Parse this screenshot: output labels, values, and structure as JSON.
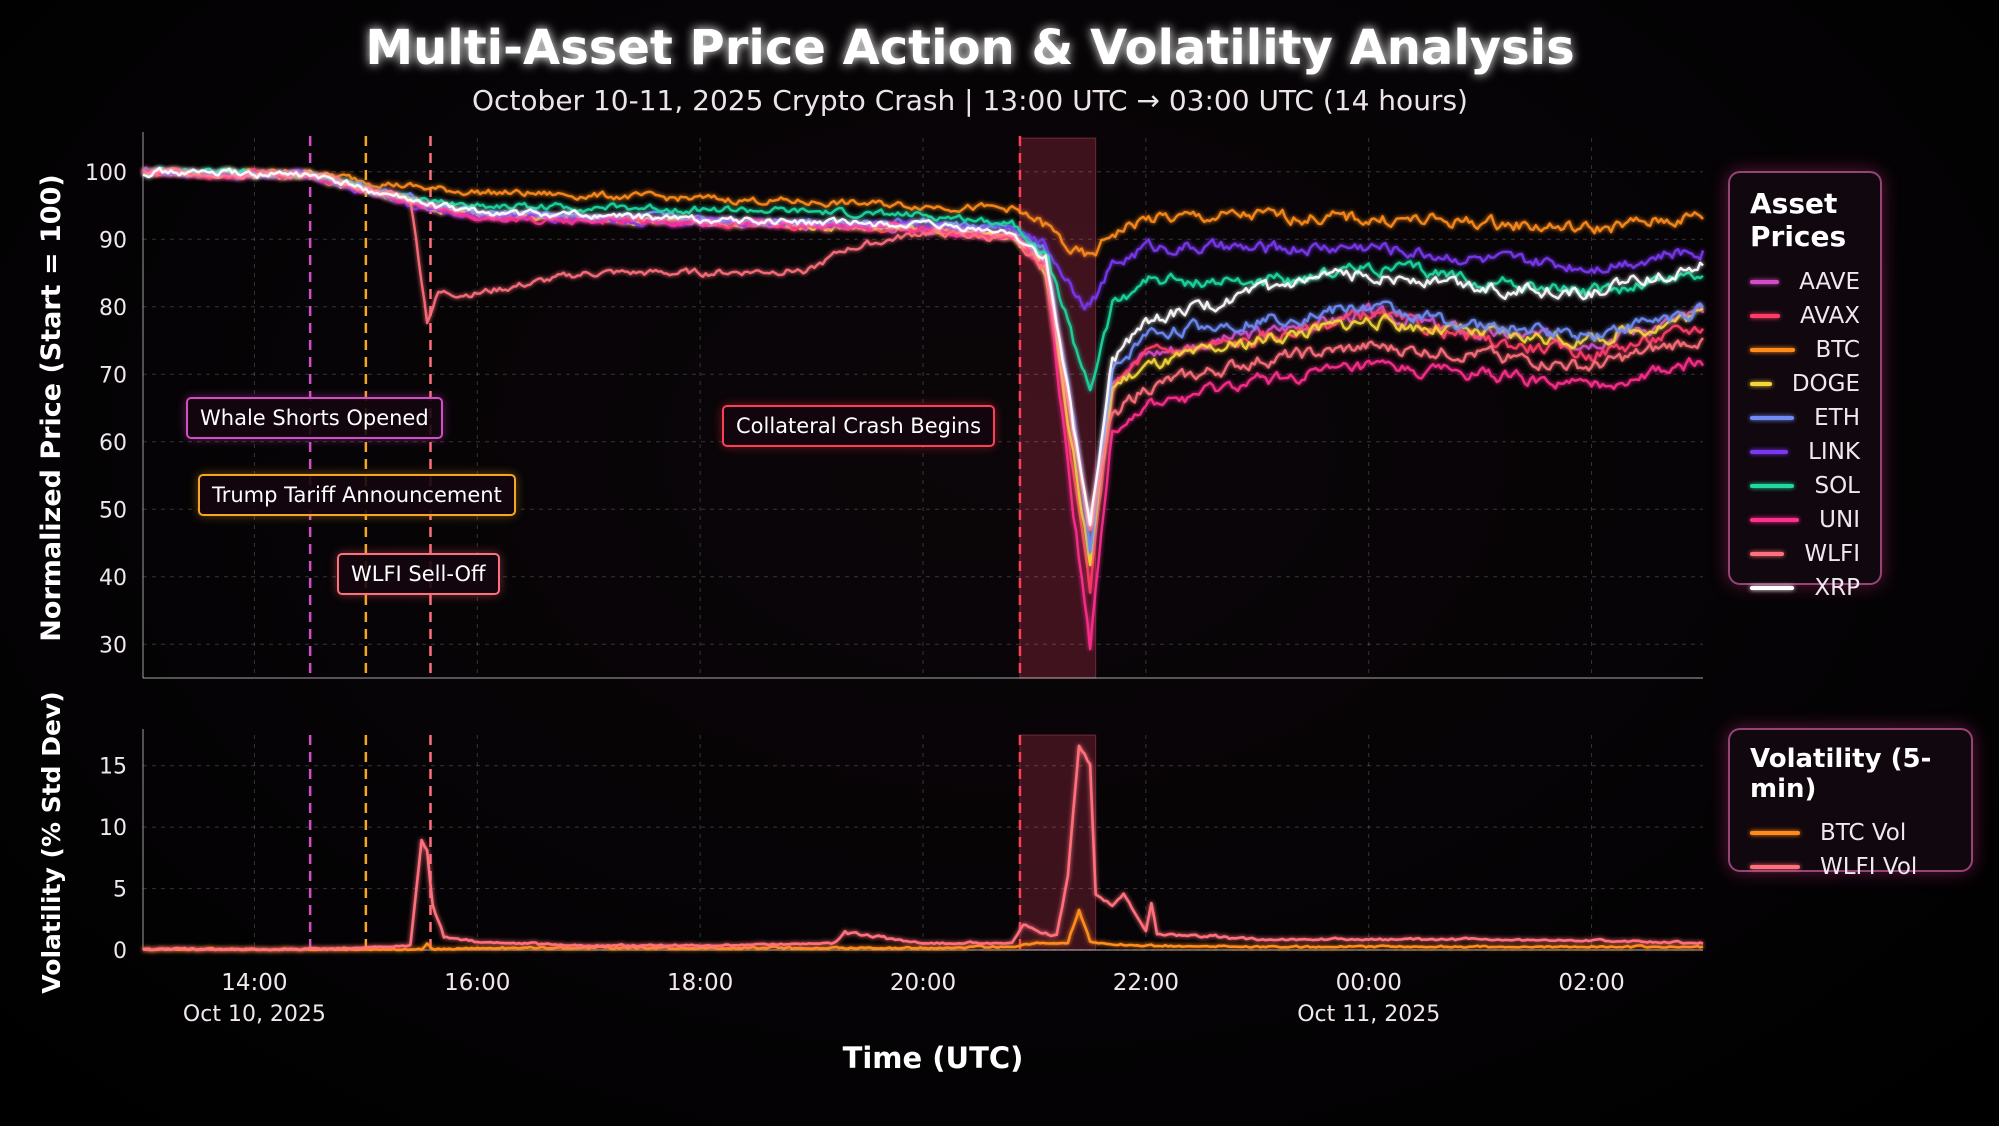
{
  "title": "Multi-Asset Price Action & Volatility Analysis",
  "subtitle": "October 10-11, 2025 Crypto Crash | 13:00 UTC → 03:00 UTC (14 hours)",
  "xlabel": "Time (UTC)",
  "colors": {
    "AAVE": "#d34ec6",
    "AVAX": "#ff3d68",
    "BTC": "#ff8c1a",
    "DOGE": "#f5d53a",
    "ETH": "#6f8cf5",
    "LINK": "#7a38f0",
    "SOL": "#1fd9a0",
    "UNI": "#ff2f8e",
    "WLFI": "#ff6f7c",
    "XRP": "#ffffff"
  },
  "annotations": [
    {
      "label": "Whale Shorts Opened",
      "time": 14.5,
      "color": "#d34ec6"
    },
    {
      "label": "Trump Tariff Announcement",
      "time": 15.0,
      "color": "#f5a623"
    },
    {
      "label": "WLFI Sell-Off",
      "time": 15.58,
      "color": "#ff6f7c"
    },
    {
      "label": "Collateral Crash Begins",
      "time": 20.87,
      "color": "#ff3d55"
    }
  ],
  "chart_data": [
    {
      "type": "line",
      "ylabel": "Normalized Price (Start = 100)",
      "ylim": [
        25,
        105
      ],
      "yticks": [
        30,
        40,
        50,
        60,
        70,
        80,
        90,
        100
      ],
      "xlim": [
        13.0,
        27.0
      ],
      "xticks": [
        {
          "t": 14,
          "label": "14:00",
          "sub": "Oct 10, 2025"
        },
        {
          "t": 16,
          "label": "16:00",
          "sub": ""
        },
        {
          "t": 18,
          "label": "18:00",
          "sub": ""
        },
        {
          "t": 20,
          "label": "20:00",
          "sub": ""
        },
        {
          "t": 22,
          "label": "22:00",
          "sub": ""
        },
        {
          "t": 24,
          "label": "00:00",
          "sub": "Oct 11, 2025"
        },
        {
          "t": 26,
          "label": "02:00",
          "sub": ""
        }
      ],
      "highlight": [
        20.87,
        21.55
      ],
      "grid": true,
      "legend_title": "Asset Prices",
      "legend_position": "right",
      "series": [
        {
          "name": "AAVE",
          "x": [
            13,
            14.5,
            15.55,
            16,
            18,
            20,
            20.8,
            21.1,
            21.35,
            21.5,
            21.7,
            22,
            23,
            24,
            25,
            26,
            27
          ],
          "y": [
            100,
            99.5,
            95,
            93.5,
            92.5,
            91.5,
            90.5,
            86,
            62,
            48,
            70,
            73,
            76,
            79,
            76,
            75,
            79
          ]
        },
        {
          "name": "AVAX",
          "x": [
            13,
            14.5,
            15.55,
            16,
            18,
            20,
            20.8,
            21.1,
            21.35,
            21.5,
            21.7,
            22,
            23,
            24,
            25,
            26,
            27
          ],
          "y": [
            100,
            99.5,
            95,
            93.5,
            92.5,
            91.5,
            90.5,
            86,
            55,
            38,
            68,
            73,
            75,
            79,
            75,
            73,
            77
          ]
        },
        {
          "name": "BTC",
          "x": [
            13,
            14.5,
            15.55,
            16,
            18,
            20,
            20.8,
            21.1,
            21.35,
            21.5,
            21.7,
            22,
            23,
            24,
            25,
            26,
            27
          ],
          "y": [
            100,
            99.8,
            97.5,
            97,
            96,
            95,
            94.5,
            92,
            88,
            87,
            91,
            93,
            93.5,
            93,
            92.5,
            91.5,
            93.5
          ]
        },
        {
          "name": "DOGE",
          "x": [
            13,
            14.5,
            15.55,
            16,
            18,
            20,
            20.8,
            21.1,
            21.35,
            21.5,
            21.7,
            22,
            23,
            24,
            25,
            26,
            27
          ],
          "y": [
            100,
            99.5,
            95,
            93.5,
            92.5,
            91.5,
            90.5,
            86,
            58,
            42,
            68,
            71,
            75,
            78,
            76,
            75,
            79
          ]
        },
        {
          "name": "ETH",
          "x": [
            13,
            14.5,
            15.55,
            16,
            18,
            20,
            20.8,
            21.1,
            21.35,
            21.5,
            21.7,
            22,
            23,
            24,
            25,
            26,
            27
          ],
          "y": [
            100,
            99.5,
            95.5,
            94,
            93,
            92.5,
            91.5,
            88,
            63,
            44,
            70,
            76,
            78,
            80,
            77,
            76,
            79.5
          ]
        },
        {
          "name": "LINK",
          "x": [
            13,
            14.5,
            15.55,
            16,
            18,
            20,
            20.8,
            21.1,
            21.35,
            21.5,
            21.7,
            22,
            23,
            24,
            25,
            26,
            27
          ],
          "y": [
            100,
            99.5,
            94.5,
            93.5,
            92.5,
            92,
            91.5,
            89,
            83,
            80,
            86,
            89,
            88.5,
            89,
            87,
            86,
            88.5
          ]
        },
        {
          "name": "SOL",
          "x": [
            13,
            14.5,
            15.55,
            16,
            18,
            20,
            20.8,
            21.1,
            21.35,
            21.5,
            21.7,
            22,
            23,
            24,
            25,
            26,
            27
          ],
          "y": [
            100,
            99.5,
            95.5,
            95,
            94.5,
            93.5,
            92.5,
            88,
            75,
            68,
            80,
            84,
            83.5,
            86,
            84,
            82,
            85
          ]
        },
        {
          "name": "UNI",
          "x": [
            13,
            14.5,
            15.55,
            16,
            18,
            20,
            20.8,
            21.1,
            21.35,
            21.5,
            21.7,
            22,
            23,
            24,
            25,
            26,
            27
          ],
          "y": [
            100,
            99.5,
            95,
            93,
            92.5,
            91.5,
            90.5,
            86,
            50,
            30,
            62,
            65,
            69,
            71,
            70,
            68,
            72
          ]
        },
        {
          "name": "WLFI",
          "x": [
            13,
            14.5,
            15.4,
            15.55,
            15.65,
            16,
            17,
            18,
            19,
            19.3,
            20,
            20.8,
            21.1,
            21.35,
            21.5,
            21.7,
            22,
            23,
            24,
            25,
            26,
            27
          ],
          "y": [
            100,
            99.5,
            96,
            78,
            82,
            82,
            85,
            85,
            85.5,
            88.5,
            91,
            90,
            86,
            62,
            47,
            64,
            68,
            72,
            74,
            73,
            71,
            75.5
          ]
        },
        {
          "name": "XRP",
          "x": [
            13,
            14.5,
            15.55,
            16,
            18,
            20,
            20.8,
            21.1,
            21.35,
            21.5,
            21.7,
            22,
            23,
            24,
            25,
            26,
            27
          ],
          "y": [
            100,
            99.5,
            95,
            94,
            93,
            92,
            91,
            87,
            62,
            48,
            72,
            78,
            82,
            85,
            83,
            82,
            86.5
          ]
        }
      ]
    },
    {
      "type": "line",
      "ylabel": "Volatility (% Std Dev)",
      "ylim": [
        0,
        17.5
      ],
      "yticks": [
        0,
        5,
        10,
        15
      ],
      "xlim": [
        13.0,
        27.0
      ],
      "legend_title": "Volatility (5-min)",
      "legend_position": "right",
      "series": [
        {
          "name": "BTC Vol",
          "x": [
            13,
            15.5,
            15.55,
            15.6,
            16,
            18,
            20,
            20.8,
            21.0,
            21.3,
            21.4,
            21.5,
            21.7,
            22,
            23,
            27
          ],
          "y": [
            0,
            0,
            0.5,
            0,
            0.1,
            0.1,
            0.1,
            0.2,
            0.5,
            0.5,
            3.2,
            0.6,
            0.4,
            0.3,
            0.2,
            0.2
          ]
        },
        {
          "name": "WLFI Vol",
          "x": [
            13,
            14.5,
            15.4,
            15.5,
            15.55,
            15.6,
            15.7,
            16,
            17,
            18,
            19.2,
            19.3,
            20,
            20.8,
            20.9,
            21.0,
            21.2,
            21.3,
            21.4,
            21.5,
            21.55,
            21.7,
            21.8,
            22,
            22.05,
            22.1,
            22.5,
            23,
            24,
            25,
            26,
            27
          ],
          "y": [
            0,
            0,
            0.3,
            8.8,
            8.0,
            3.5,
            1,
            0.6,
            0.3,
            0.3,
            0.5,
            1.3,
            0.5,
            0.5,
            2,
            1.5,
            1,
            6,
            16.5,
            15,
            4.5,
            3.5,
            4.5,
            1.5,
            3.8,
            1.2,
            1,
            0.8,
            0.8,
            0.8,
            0.7,
            0.5
          ]
        }
      ]
    }
  ]
}
